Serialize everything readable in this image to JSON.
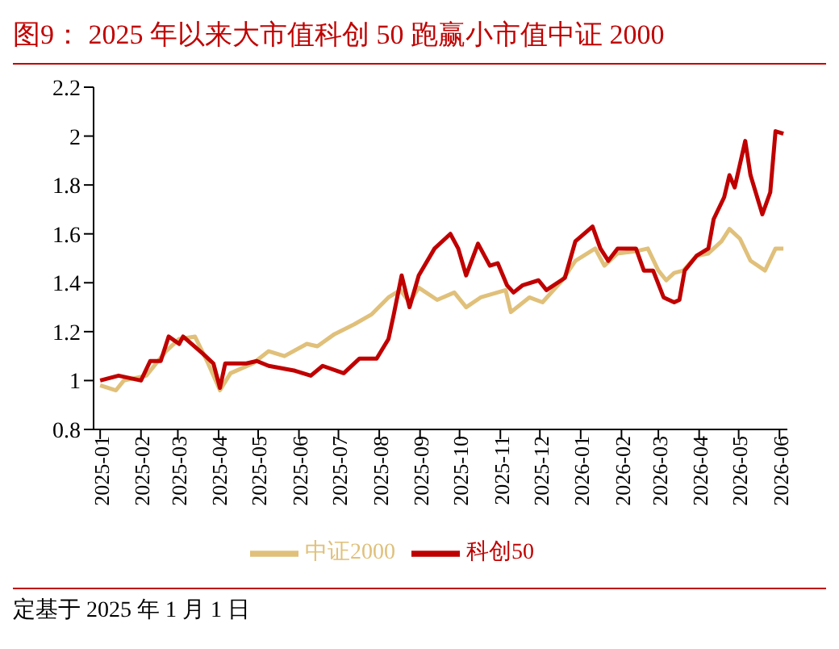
{
  "chart_data": {
    "type": "line",
    "title": "图9：  2025 年以来大市值科创 50 跑赢小市值中证 2000",
    "annotations": [
      "定基于 2025 年 1 月 1 日"
    ],
    "ylim": [
      0.8,
      2.2
    ],
    "yticks": [
      0.8,
      1,
      1.2,
      1.4,
      1.6,
      1.8,
      2,
      2.2
    ],
    "xlim": [
      "2024-12-27",
      "2026-06-07"
    ],
    "xticks": [
      "2025-01",
      "2025-02",
      "2025-03",
      "2025-04",
      "2025-05",
      "2025-06",
      "2025-07",
      "2025-08",
      "2025-09",
      "2025-10",
      "2025-11",
      "2025-12",
      "2026-01",
      "2026-02",
      "2026-03",
      "2026-04",
      "2026-05",
      "2026-06"
    ],
    "legend": "bottom",
    "grid": false,
    "marker": "none",
    "line_style": "solid",
    "series": [
      {
        "name": "中证2000",
        "color": "#e0c07a",
        "x": [
          "2025-01-01",
          "2025-01-13",
          "2025-01-19",
          "2025-02-05",
          "2025-02-20",
          "2025-03-02",
          "2025-03-14",
          "2025-03-24",
          "2025-04-02",
          "2025-04-10",
          "2025-04-27",
          "2025-05-09",
          "2025-05-21",
          "2025-06-07",
          "2025-06-15",
          "2025-06-28",
          "2025-07-13",
          "2025-07-26",
          "2025-08-08",
          "2025-08-17",
          "2025-08-24",
          "2025-08-31",
          "2025-09-14",
          "2025-09-27",
          "2025-10-06",
          "2025-10-17",
          "2025-11-05",
          "2025-11-09",
          "2025-11-23",
          "2025-12-03",
          "2025-12-18",
          "2025-12-28",
          "2026-01-12",
          "2026-01-19",
          "2026-01-29",
          "2026-02-13",
          "2026-02-21",
          "2026-03-01",
          "2026-03-07",
          "2026-03-13",
          "2026-03-20",
          "2026-03-30",
          "2026-04-08",
          "2026-04-18",
          "2026-04-24",
          "2026-05-02",
          "2026-05-10",
          "2026-05-21",
          "2026-05-29",
          "2026-06-04"
        ],
        "values": [
          0.98,
          0.96,
          1.0,
          1.02,
          1.12,
          1.17,
          1.18,
          1.07,
          0.96,
          1.03,
          1.07,
          1.12,
          1.1,
          1.15,
          1.14,
          1.19,
          1.23,
          1.27,
          1.34,
          1.37,
          1.32,
          1.38,
          1.33,
          1.36,
          1.3,
          1.34,
          1.37,
          1.28,
          1.34,
          1.32,
          1.41,
          1.49,
          1.54,
          1.47,
          1.52,
          1.53,
          1.54,
          1.45,
          1.41,
          1.44,
          1.45,
          1.51,
          1.52,
          1.57,
          1.62,
          1.58,
          1.49,
          1.45,
          1.54,
          1.54
        ]
      },
      {
        "name": "科创50",
        "color": "#c00000",
        "x": [
          "2025-01-01",
          "2025-01-15",
          "2025-02-01",
          "2025-02-08",
          "2025-02-16",
          "2025-02-22",
          "2025-03-02",
          "2025-03-05",
          "2025-03-20",
          "2025-03-28",
          "2025-04-02",
          "2025-04-06",
          "2025-04-22",
          "2025-04-30",
          "2025-05-09",
          "2025-05-29",
          "2025-06-10",
          "2025-06-19",
          "2025-07-05",
          "2025-07-17",
          "2025-07-30",
          "2025-08-08",
          "2025-08-12",
          "2025-08-18",
          "2025-08-24",
          "2025-08-31",
          "2025-09-12",
          "2025-09-24",
          "2025-09-30",
          "2025-10-06",
          "2025-10-15",
          "2025-10-24",
          "2025-10-30",
          "2025-11-06",
          "2025-11-11",
          "2025-11-18",
          "2025-11-30",
          "2025-12-06",
          "2025-12-20",
          "2025-12-28",
          "2026-01-10",
          "2026-01-16",
          "2026-01-22",
          "2026-01-29",
          "2026-02-12",
          "2026-02-18",
          "2026-02-25",
          "2026-03-05",
          "2026-03-13",
          "2026-03-17",
          "2026-03-21",
          "2026-03-30",
          "2026-04-08",
          "2026-04-12",
          "2026-04-20",
          "2026-04-24",
          "2026-04-28",
          "2026-05-06",
          "2026-05-10",
          "2026-05-19",
          "2026-05-25",
          "2026-05-29",
          "2026-06-04"
        ],
        "values": [
          1.0,
          1.02,
          1.0,
          1.08,
          1.08,
          1.18,
          1.15,
          1.18,
          1.11,
          1.07,
          0.97,
          1.07,
          1.07,
          1.08,
          1.06,
          1.04,
          1.02,
          1.06,
          1.03,
          1.09,
          1.09,
          1.17,
          1.27,
          1.43,
          1.3,
          1.43,
          1.54,
          1.6,
          1.54,
          1.43,
          1.56,
          1.47,
          1.48,
          1.39,
          1.36,
          1.39,
          1.41,
          1.37,
          1.42,
          1.57,
          1.63,
          1.54,
          1.49,
          1.54,
          1.54,
          1.45,
          1.45,
          1.34,
          1.32,
          1.33,
          1.45,
          1.51,
          1.54,
          1.66,
          1.75,
          1.84,
          1.79,
          1.98,
          1.84,
          1.68,
          1.77,
          2.02,
          2.01
        ]
      }
    ]
  }
}
